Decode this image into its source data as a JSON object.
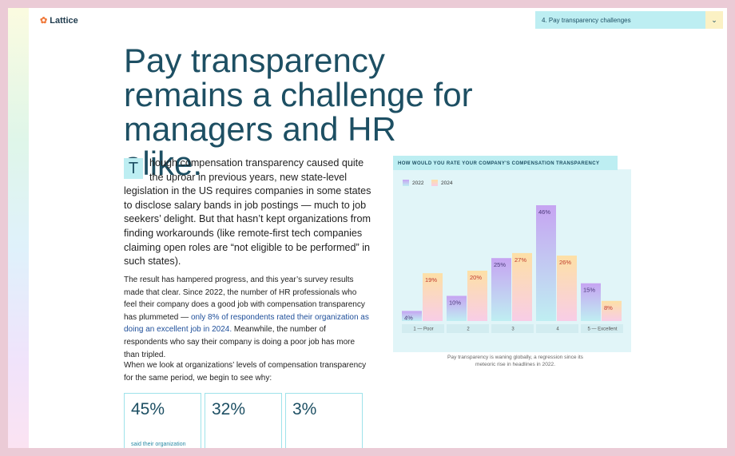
{
  "header": {
    "logo": "Lattice",
    "dropdown": "4. Pay transparency challenges"
  },
  "article": {
    "title": "Pay transparency remains a challenge for managers and HR alike.",
    "dropcap": "T",
    "intro": "hough compensation transparency caused quite the uproar in previous years, new state-level legislation in the US requires companies in some states to disclose salary bands in job postings — much to job seekers’ delight. But that hasn’t kept organizations from finding workarounds (like remote-first tech companies claiming open roles are “not eligible to be performed” in such states).",
    "paragraph2": [
      "The result has hampered progress, and this year’s survey results made that clear. Since 2022, the number of HR professionals who feel their company does a good job with compensation transparency has plummeted — ",
      "only 8% of respondents rated their organization as doing an excellent job in 2024.",
      " Meanwhile, the number of respondents who say their company is doing a poor job has more than tripled."
    ],
    "paragraph3": "When we look at organizations’ levels of compensation transparency for the same period, we begin to see why:",
    "stats": [
      {
        "value": "45%",
        "text": "said their organization"
      },
      {
        "value": "32%"
      },
      {
        "value": "3%"
      }
    ]
  },
  "chart_data": {
    "type": "bar",
    "title": "HOW WOULD YOU RATE YOUR COMPANY'S COMPENSATION TRANSPARENCY",
    "caption": "Pay transparency is waning globally, a regression since its meteoric rise in headlines in 2022.",
    "categories": [
      "1 — Poor",
      "2",
      "3",
      "4",
      "5 — Excellent"
    ],
    "series": [
      {
        "name": "2022",
        "color": "#c6a4f2",
        "label_color": "#4b3a7a",
        "values": [
          4,
          10,
          25,
          46,
          15
        ],
        "value_labels": [
          "4%",
          "10%",
          "25%",
          "46%",
          "15%"
        ]
      },
      {
        "name": "2024",
        "color": "#fde0a6",
        "label_color": "#c0392b",
        "values": [
          19,
          20,
          27,
          26,
          8
        ],
        "value_labels": [
          "19%",
          "20%",
          "27%",
          "26%",
          "8%"
        ]
      }
    ]
  }
}
